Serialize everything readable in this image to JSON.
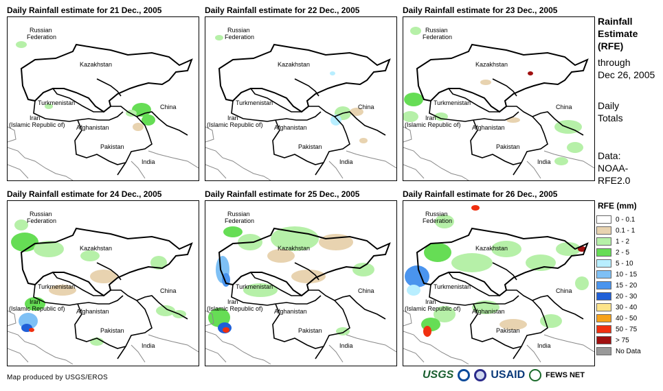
{
  "panels": [
    {
      "title": "Daily Rainfall estimate for 21 Dec., 2005"
    },
    {
      "title": "Daily Rainfall estimate for 22 Dec., 2005"
    },
    {
      "title": "Daily Rainfall estimate for 23 Dec., 2005"
    },
    {
      "title": "Daily Rainfall estimate for 24 Dec., 2005"
    },
    {
      "title": "Daily Rainfall estimate for 25 Dec., 2005"
    },
    {
      "title": "Daily Rainfall estimate for 26 Dec., 2005"
    }
  ],
  "map_labels": {
    "russia": "Russian",
    "federation": "Federation",
    "kazakhstan": "Kazakhstan",
    "turkmenistan": "Turkmenistan",
    "china": "China",
    "iran": "Iran",
    "iran_sub": "(Islamic Republic of)",
    "afghanistan": "Afghanistan",
    "pakistan": "Pakistan",
    "india": "India"
  },
  "side": {
    "title1": "Rainfall",
    "title2": "Estimate",
    "title3": "(RFE)",
    "through": "through",
    "date": "Dec 26, 2005",
    "daily": "Daily",
    "totals": "Totals",
    "data_label": "Data:",
    "data_src1": "NOAA-",
    "data_src2": "RFE2.0"
  },
  "legend": {
    "title": "RFE (mm)",
    "items": [
      {
        "label": "0 - 0.1",
        "color": "#ffffff"
      },
      {
        "label": "0.1 - 1",
        "color": "#e8d3b0"
      },
      {
        "label": "1 - 2",
        "color": "#b6f0a8"
      },
      {
        "label": "2 - 5",
        "color": "#66dd55"
      },
      {
        "label": "5 - 10",
        "color": "#b8eeff"
      },
      {
        "label": "10 - 15",
        "color": "#7ec0f5"
      },
      {
        "label": "15 - 20",
        "color": "#4a94ee"
      },
      {
        "label": "20 - 30",
        "color": "#1f5fd8"
      },
      {
        "label": "30 - 40",
        "color": "#fde48a"
      },
      {
        "label": "40 - 50",
        "color": "#f7a21a"
      },
      {
        "label": "50 - 75",
        "color": "#f03010"
      },
      {
        "label": "> 75",
        "color": "#a01010"
      },
      {
        "label": "No Data",
        "color": "#999999"
      }
    ]
  },
  "credit": "Map produced by USGS/EROS",
  "logos": {
    "usgs": "USGS",
    "usaid": "USAID",
    "fews": "FEWS NET"
  }
}
